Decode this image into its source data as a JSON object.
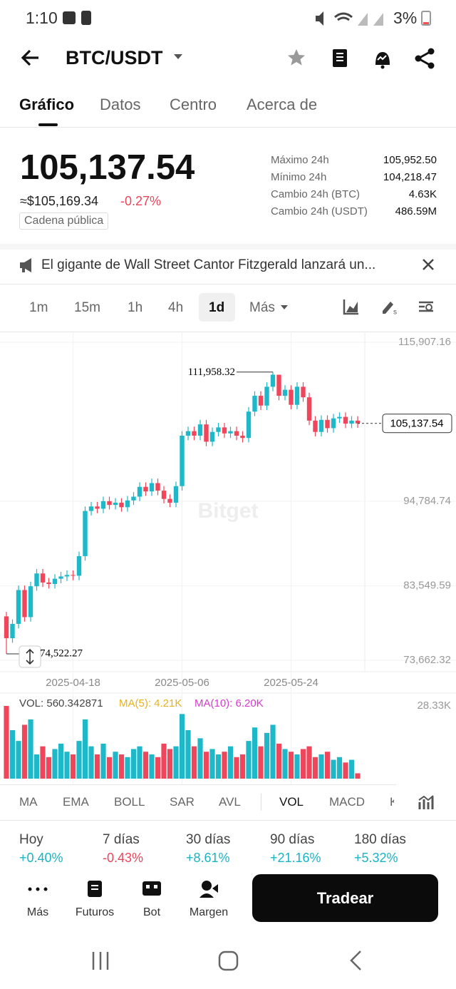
{
  "status_bar": {
    "time": "1:10",
    "battery": "3%"
  },
  "header": {
    "pair": "BTC/USDT"
  },
  "tabs": [
    "Gráfico",
    "Datos",
    "Centro",
    "Acerca de"
  ],
  "price": {
    "last": "105,137.54",
    "usd": "≈$105,169.34",
    "change": "-0.27%",
    "badge": "Cadena pública"
  },
  "stats": [
    {
      "label": "Máximo 24h",
      "value": "105,952.50"
    },
    {
      "label": "Mínimo 24h",
      "value": "104,218.47"
    },
    {
      "label": "Cambio 24h (BTC)",
      "value": "4.63K"
    },
    {
      "label": "Cambio 24h (USDT)",
      "value": "486.59M"
    }
  ],
  "news": "El gigante de Wall Street Cantor Fitzgerald lanzará un...",
  "timeframes": [
    "1m",
    "15m",
    "1h",
    "4h",
    "1d",
    "Más"
  ],
  "chart_data": {
    "type": "candlestick",
    "watermark": "Bitget",
    "up_color": "#1fb8c9",
    "down_color": "#f0465c",
    "categories": [
      null,
      null,
      null,
      null,
      null,
      null,
      null,
      null,
      null,
      null,
      null,
      "2025-04-18",
      null,
      null,
      null,
      null,
      null,
      null,
      null,
      null,
      null,
      null,
      null,
      null,
      null,
      null,
      null,
      null,
      null,
      "2025-05-06",
      null,
      null,
      null,
      null,
      null,
      null,
      null,
      null,
      null,
      null,
      null,
      null,
      null,
      null,
      null,
      null,
      null,
      "2025-05-24",
      null,
      null,
      null,
      null,
      null,
      null,
      null,
      null,
      null,
      null,
      null
    ],
    "open": [
      79500,
      76600,
      78500,
      83000,
      79400,
      83500,
      85200,
      84000,
      83800,
      84500,
      84800,
      85000,
      84900,
      87500,
      93500,
      94100,
      93800,
      94800,
      94300,
      94600,
      94000,
      94900,
      95400,
      96700,
      96100,
      97200,
      96200,
      95100,
      94600,
      96800,
      103500,
      104100,
      103500,
      105000,
      102700,
      104000,
      104600,
      103800,
      104100,
      103500,
      103200,
      106700,
      108800,
      107500,
      110000,
      111600,
      108800,
      109600,
      107600,
      110000,
      108600,
      105500,
      104000,
      105600,
      104500,
      105800,
      106000,
      105100,
      105500
    ],
    "high": [
      80100,
      79100,
      83600,
      83600,
      84100,
      85800,
      85800,
      84600,
      85100,
      85400,
      85600,
      85600,
      88100,
      94100,
      94700,
      94700,
      95400,
      95400,
      95200,
      95200,
      95500,
      96000,
      97300,
      97300,
      97800,
      97800,
      96800,
      95700,
      97400,
      104100,
      104700,
      104700,
      105600,
      105600,
      104600,
      105200,
      105200,
      104700,
      104700,
      104100,
      107300,
      109400,
      109400,
      110600,
      111958.32,
      111500,
      110200,
      110200,
      110600,
      110600,
      109200,
      106100,
      106200,
      106200,
      106400,
      106600,
      106600,
      106100,
      106100
    ],
    "low": [
      74522.27,
      76000,
      77900,
      78800,
      78800,
      82900,
      83400,
      83200,
      83200,
      83900,
      84200,
      84300,
      84300,
      86900,
      92900,
      93200,
      93200,
      93700,
      93700,
      93400,
      93400,
      94300,
      94800,
      95500,
      95500,
      95600,
      94500,
      94000,
      94000,
      96200,
      102900,
      102900,
      102900,
      102100,
      102100,
      103400,
      103200,
      103200,
      102900,
      102600,
      102600,
      106100,
      106900,
      106900,
      109400,
      108200,
      108200,
      107000,
      107000,
      108000,
      104900,
      103400,
      103400,
      103900,
      103900,
      105200,
      104500,
      104500,
      104537
    ],
    "close": [
      76600,
      78500,
      83000,
      79400,
      83500,
      85200,
      84000,
      83800,
      84500,
      84800,
      85000,
      84900,
      87500,
      93500,
      94100,
      93800,
      94800,
      94300,
      94600,
      94000,
      94900,
      95400,
      96700,
      96100,
      97200,
      96200,
      95100,
      94600,
      96800,
      103500,
      104100,
      103500,
      105000,
      102700,
      104000,
      104600,
      103800,
      104100,
      103500,
      103200,
      106700,
      108800,
      107500,
      110000,
      111600,
      108800,
      109600,
      107600,
      110000,
      108600,
      105500,
      104000,
      105600,
      104500,
      105800,
      106000,
      105100,
      105500,
      105137.54
    ],
    "ylim": [
      72340,
      117330
    ],
    "yticks": [
      {
        "value": 115907.16,
        "label": "115,907.16"
      },
      {
        "value": 94784.74,
        "label": "94,784.74"
      },
      {
        "value": 83549.59,
        "label": "83,549.59"
      },
      {
        "value": 73662.32,
        "label": "73,662.32"
      }
    ],
    "max_label": "111,958.32",
    "min_label": "74,522.27",
    "last_label": "105,137.54",
    "volume": {
      "label": "VOL: 560.342871",
      "ma5": "MA(5): 4.21K",
      "ma10": "MA(10): 6.20K",
      "ma5_color": "#e8b21c",
      "ma10_color": "#d63ad0",
      "values": [
        27,
        18,
        14,
        20,
        22,
        9,
        12,
        8,
        11,
        13,
        10,
        9,
        14,
        22,
        12,
        9,
        13,
        8,
        10,
        9,
        8,
        11,
        12,
        10,
        9,
        8,
        13,
        11,
        12,
        24,
        18,
        12,
        15,
        10,
        11,
        9,
        10,
        12,
        8,
        9,
        14,
        19,
        12,
        17,
        20,
        13,
        11,
        10,
        9,
        11,
        12,
        8,
        9,
        10,
        7,
        8,
        6,
        7,
        2
      ],
      "ylim": [
        0,
        28.33
      ],
      "yticks": [
        {
          "value": 28.33,
          "label": "28.33K"
        }
      ]
    }
  },
  "indicators": [
    "MA",
    "EMA",
    "BOLL",
    "SAR",
    "AVL",
    "VOL",
    "MACD",
    "K"
  ],
  "performance": [
    {
      "label": "Hoy",
      "value": "+0.40%"
    },
    {
      "label": "7 días",
      "value": "-0.43%"
    },
    {
      "label": "30 días",
      "value": "+8.61%"
    },
    {
      "label": "90 días",
      "value": "+21.16%"
    },
    {
      "label": "180 días",
      "value": "+5.32%"
    }
  ],
  "nav": [
    "Más",
    "Futuros",
    "Bot",
    "Margen"
  ],
  "trade_button": "Tradear"
}
